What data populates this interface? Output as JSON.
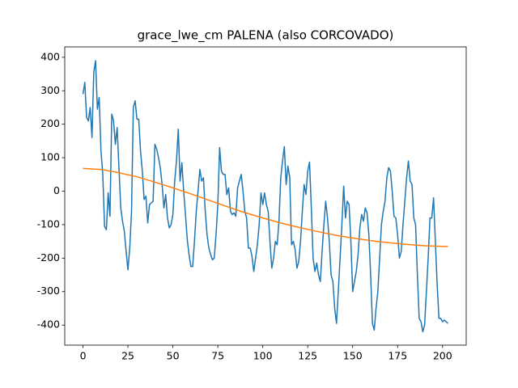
{
  "chart_data": {
    "type": "line",
    "title": "grace_lwe_cm PALENA (also CORCOVADO)",
    "xlim": [
      -10.15,
      213.15
    ],
    "ylim": [
      -460,
      431
    ],
    "xticks": [
      0,
      25,
      50,
      75,
      100,
      125,
      150,
      175,
      200
    ],
    "yticks": [
      -400,
      -300,
      -200,
      -100,
      0,
      100,
      200,
      300,
      400
    ],
    "series": [
      {
        "color": "#1f77b4",
        "x": [
          0,
          1,
          2,
          3,
          4,
          5,
          6,
          7,
          8,
          9,
          10,
          11,
          12,
          13,
          14,
          15,
          16,
          17,
          18,
          19,
          20,
          21,
          22,
          23,
          24,
          25,
          26,
          27,
          28,
          29,
          30,
          31,
          32,
          33,
          34,
          35,
          36,
          37,
          38,
          39,
          40,
          41,
          42,
          43,
          44,
          45,
          46,
          47,
          48,
          49,
          50,
          51,
          52,
          53,
          54,
          55,
          56,
          57,
          58,
          59,
          60,
          61,
          62,
          63,
          64,
          65,
          66,
          67,
          68,
          69,
          70,
          71,
          72,
          73,
          74,
          75,
          76,
          77,
          78,
          79,
          80,
          81,
          82,
          83,
          84,
          85,
          86,
          87,
          88,
          89,
          90,
          91,
          92,
          93,
          94,
          95,
          96,
          97,
          98,
          99,
          100,
          101,
          102,
          103,
          104,
          105,
          106,
          107,
          108,
          109,
          110,
          111,
          112,
          113,
          114,
          115,
          116,
          117,
          118,
          119,
          120,
          121,
          122,
          123,
          124,
          125,
          126,
          127,
          128,
          129,
          130,
          131,
          132,
          133,
          134,
          135,
          136,
          137,
          138,
          139,
          140,
          141,
          142,
          143,
          144,
          145,
          146,
          147,
          148,
          149,
          150,
          151,
          152,
          153,
          154,
          155,
          156,
          157,
          158,
          159,
          160,
          161,
          162,
          163,
          164,
          165,
          166,
          167,
          168,
          169,
          170,
          171,
          172,
          173,
          174,
          175,
          176,
          177,
          178,
          179,
          180,
          181,
          182,
          183,
          184,
          185,
          186,
          187,
          188,
          189,
          190,
          191,
          192,
          193,
          194,
          195,
          196,
          197,
          198,
          199,
          200,
          201,
          202,
          203
        ],
        "values": [
          290,
          325,
          220,
          210,
          250,
          160,
          355,
          390,
          245,
          280,
          120,
          50,
          -105,
          -115,
          -5,
          -75,
          230,
          210,
          140,
          190,
          70,
          -50,
          -90,
          -120,
          -180,
          -235,
          -170,
          -60,
          250,
          270,
          215,
          215,
          120,
          60,
          -25,
          -15,
          -95,
          -40,
          -35,
          -30,
          140,
          125,
          100,
          70,
          20,
          -50,
          -10,
          -80,
          -110,
          -100,
          -70,
          30,
          90,
          185,
          30,
          85,
          0,
          -70,
          -145,
          -190,
          -225,
          -225,
          -150,
          -60,
          0,
          65,
          30,
          40,
          -60,
          -130,
          -170,
          -190,
          -205,
          -200,
          -130,
          -40,
          130,
          60,
          50,
          50,
          -10,
          10,
          -60,
          -70,
          -65,
          -75,
          10,
          30,
          50,
          0,
          -60,
          -80,
          -170,
          -170,
          -195,
          -240,
          -200,
          -160,
          -100,
          -5,
          -40,
          -5,
          -40,
          -60,
          -150,
          -230,
          -200,
          -150,
          -160,
          -90,
          40,
          90,
          133,
          20,
          75,
          40,
          -160,
          -150,
          -175,
          -230,
          -210,
          -150,
          -60,
          20,
          -10,
          60,
          87,
          -50,
          -200,
          -240,
          -215,
          -250,
          -270,
          -180,
          -100,
          -30,
          -80,
          -150,
          -250,
          -270,
          -350,
          -395,
          -300,
          -200,
          -100,
          15,
          -80,
          -30,
          -40,
          -150,
          -300,
          -270,
          -240,
          -190,
          -110,
          -70,
          -90,
          -50,
          -65,
          -130,
          -250,
          -395,
          -415,
          -350,
          -300,
          -200,
          -100,
          -60,
          -30,
          40,
          70,
          60,
          0,
          -75,
          -80,
          -130,
          -200,
          -180,
          -100,
          -30,
          40,
          90,
          30,
          20,
          -80,
          -100,
          -250,
          -380,
          -390,
          -420,
          -400,
          -300,
          -200,
          -80,
          -80,
          -20,
          -150,
          -280,
          -380,
          -380,
          -390,
          -385,
          -390,
          -395
        ]
      },
      {
        "color": "#ff7f0e",
        "x": [
          0,
          10,
          20,
          30,
          40,
          50,
          60,
          70,
          80,
          90,
          100,
          110,
          120,
          130,
          140,
          150,
          160,
          170,
          180,
          190,
          200,
          203
        ],
        "values": [
          68,
          65,
          55,
          43,
          27,
          10,
          -8,
          -27,
          -46,
          -64,
          -80,
          -95,
          -108,
          -120,
          -131,
          -140,
          -148,
          -154,
          -159,
          -163,
          -165,
          -165
        ]
      }
    ]
  }
}
